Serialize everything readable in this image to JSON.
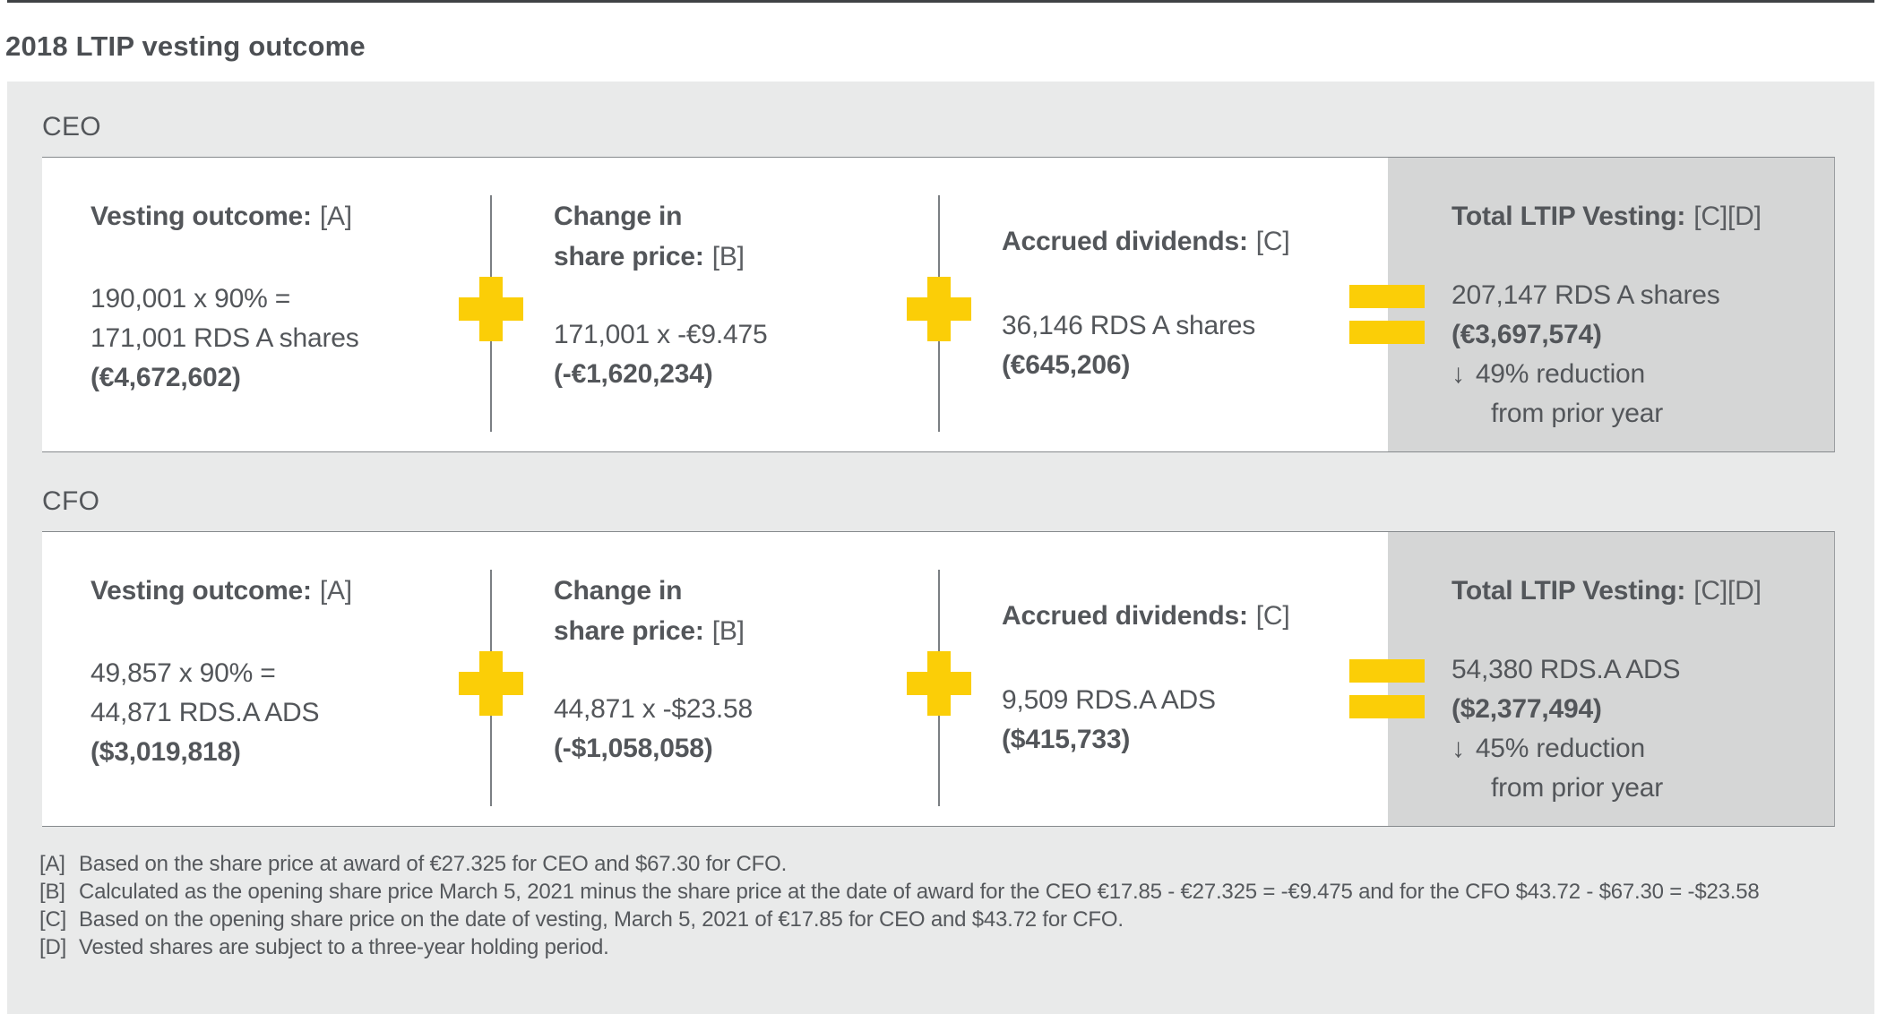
{
  "page_title": "2018 LTIP vesting outcome",
  "colors": {
    "accent_yellow": "#fbce07",
    "text_gray": "#53565a",
    "background_gray": "#e9eaea",
    "panel_gray": "#d5d6d6"
  },
  "sections": [
    {
      "label": "CEO",
      "columns": {
        "vesting": {
          "heading": "Vesting outcome:",
          "ref": "[A]",
          "line1": "190,001 x 90% =",
          "line2": "171,001 RDS A shares",
          "value": "(€4,672,602)"
        },
        "change": {
          "heading1": "Change in",
          "heading2": "share price:",
          "ref": "[B]",
          "line1": "171,001 x -€9.475",
          "value": "(-€1,620,234)"
        },
        "dividends": {
          "heading": "Accrued dividends:",
          "ref": "[C]",
          "line1": "36,146 RDS A shares",
          "value": "(€645,206)"
        },
        "total": {
          "heading": "Total LTIP Vesting:",
          "ref": "[C][D]",
          "line1": "207,147 RDS A shares",
          "value": "(€3,697,574)",
          "arrow": "↓",
          "reduction": "49% reduction",
          "reduction_cont": "from prior year"
        }
      }
    },
    {
      "label": "CFO",
      "columns": {
        "vesting": {
          "heading": "Vesting outcome:",
          "ref": "[A]",
          "line1": "49,857 x 90% =",
          "line2": "44,871 RDS.A ADS",
          "value": "($3,019,818)"
        },
        "change": {
          "heading1": "Change in",
          "heading2": "share price:",
          "ref": "[B]",
          "line1": "44,871 x -$23.58",
          "value": "(-$1,058,058)"
        },
        "dividends": {
          "heading": "Accrued dividends:",
          "ref": "[C]",
          "line1": "9,509 RDS.A ADS",
          "value": "($415,733)"
        },
        "total": {
          "heading": "Total LTIP Vesting:",
          "ref": "[C][D]",
          "line1": "54,380 RDS.A ADS",
          "value": "($2,377,494)",
          "arrow": "↓",
          "reduction": "45% reduction",
          "reduction_cont": "from prior year"
        }
      }
    }
  ],
  "footnotes": [
    {
      "ref": "[A]",
      "text": "Based on the share price at award of €27.325 for CEO and $67.30 for CFO."
    },
    {
      "ref": "[B]",
      "text": "Calculated as the opening share price March 5, 2021 minus the share price at the date of award for the CEO €17.85 - €27.325 = -€9.475 and for the CFO $43.72 - $67.30 = -$23.58"
    },
    {
      "ref": "[C]",
      "text": "Based on the opening share price on the date of vesting, March 5, 2021 of €17.85 for CEO and $43.72 for CFO."
    },
    {
      "ref": "[D]",
      "text": "Vested shares are subject to a three-year holding period."
    }
  ]
}
